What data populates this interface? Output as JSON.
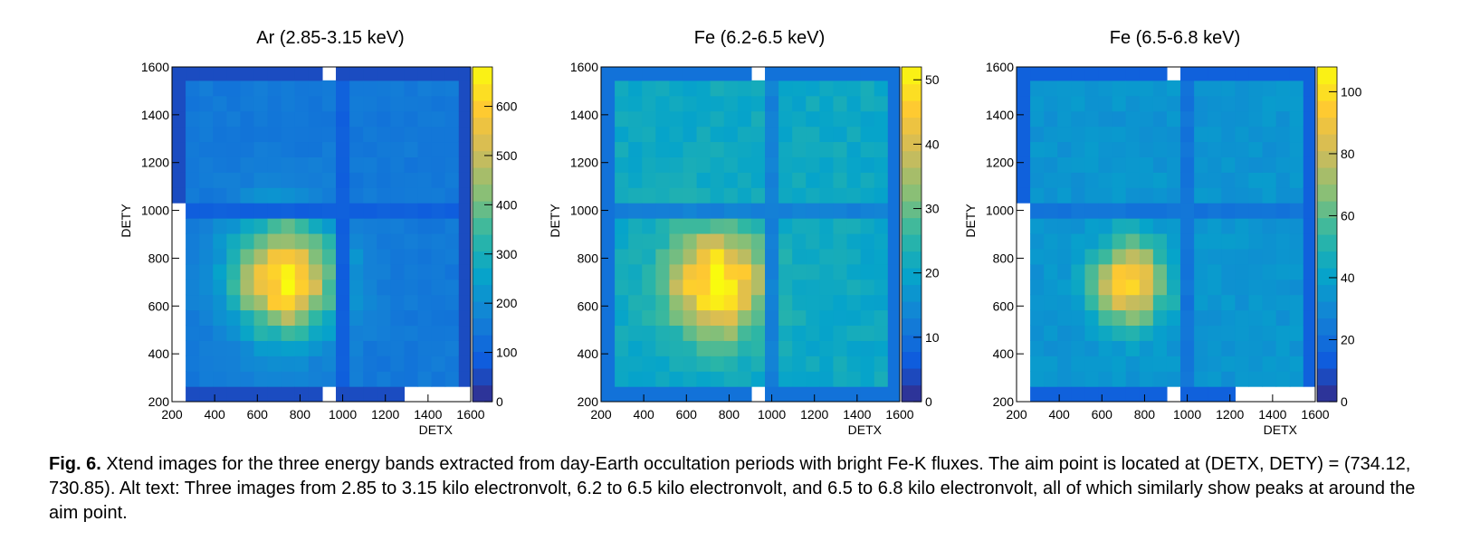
{
  "figure": {
    "fig_label": "Fig. 6.",
    "caption": "Xtend images for the three energy bands extracted from day-Earth occultation periods with bright Fe-K fluxes. The aim point is located at (DETX, DETY) = (734.12, 730.85). Alt text: Three images from 2.85 to 3.15 kilo electronvolt, 6.2 to 6.5 kilo electronvolt, and 6.5 to 6.8 kilo electronvolt, all of which similarly show peaks at around the aim point."
  },
  "chart_data": [
    {
      "type": "heatmap",
      "title": "Ar (2.85-3.15 keV)",
      "xlabel": "DETX",
      "ylabel": "DETY",
      "xlim": [
        200,
        1600
      ],
      "ylim": [
        200,
        1600
      ],
      "xticks": [
        200,
        400,
        600,
        800,
        1000,
        1200,
        1400,
        1600
      ],
      "yticks": [
        200,
        400,
        600,
        800,
        1000,
        1200,
        1400,
        1600
      ],
      "zlim": [
        0,
        680
      ],
      "zticks": [
        0,
        100,
        200,
        300,
        400,
        500,
        600
      ],
      "model": {
        "background": 150,
        "gap_level": 90,
        "edge_level": 25,
        "peak_x": 730,
        "peak_y": 720,
        "peak_amp": 510,
        "peak_sigma": 165,
        "chip_gap_x": [
          950,
          1000
        ],
        "chip_gap_y": [
          950,
          1000
        ],
        "missing_top_x": [
          880,
          960
        ],
        "missing_bottom_x": [
          1280,
          1600
        ],
        "missing_bottom_x2": [
          880,
          960
        ],
        "missing_left_y": [
          200,
          1000
        ]
      }
    },
    {
      "type": "heatmap",
      "title": "Fe (6.2-6.5 keV)",
      "xlabel": "DETX",
      "ylabel": "DETY",
      "xlim": [
        200,
        1600
      ],
      "ylim": [
        200,
        1600
      ],
      "xticks": [
        200,
        400,
        600,
        800,
        1000,
        1200,
        1400,
        1600
      ],
      "yticks": [
        200,
        400,
        600,
        800,
        1000,
        1200,
        1400,
        1600
      ],
      "zlim": [
        0,
        52
      ],
      "zticks": [
        0,
        10,
        20,
        30,
        40,
        50
      ],
      "model": {
        "background": 21,
        "gap_level": 13,
        "edge_level": 6,
        "peak_x": 740,
        "peak_y": 700,
        "peak_amp": 32,
        "peak_sigma": 150,
        "chip_gap_x": [
          950,
          1000
        ],
        "chip_gap_y": [
          950,
          1000
        ],
        "missing_top_x": [
          900,
          960
        ],
        "missing_bottom_x": [
          900,
          960
        ],
        "missing_bottom_x2": [
          900,
          960
        ],
        "missing_left_y": [
          0,
          0
        ]
      }
    },
    {
      "type": "heatmap",
      "title": "Fe (6.5-6.8 keV)",
      "xlabel": "DETX",
      "ylabel": "DETY",
      "xlim": [
        200,
        1600
      ],
      "ylim": [
        200,
        1600
      ],
      "xticks": [
        200,
        400,
        600,
        800,
        1000,
        1200,
        1400,
        1600
      ],
      "yticks": [
        200,
        400,
        600,
        800,
        1000,
        1200,
        1400,
        1600
      ],
      "zlim": [
        0,
        108
      ],
      "zticks": [
        0,
        20,
        40,
        60,
        80,
        100
      ],
      "model": {
        "background": 35,
        "gap_level": 22,
        "edge_level": 8,
        "peak_x": 730,
        "peak_y": 700,
        "peak_amp": 60,
        "peak_sigma": 120,
        "chip_gap_x": [
          950,
          1000
        ],
        "chip_gap_y": [
          950,
          1000
        ],
        "missing_top_x": [
          880,
          960
        ],
        "missing_bottom_x": [
          1200,
          1600
        ],
        "missing_bottom_x2": [
          880,
          960
        ],
        "missing_left_y": [
          200,
          1000
        ]
      }
    }
  ]
}
